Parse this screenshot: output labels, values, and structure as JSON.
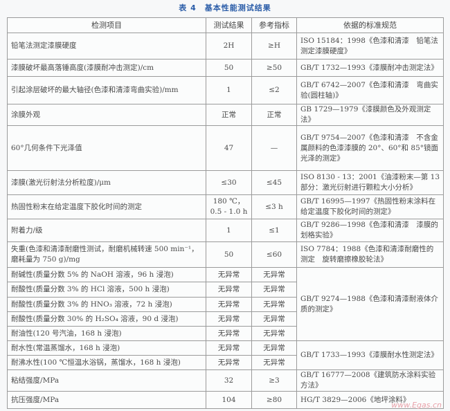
{
  "title": "表 4　基本性能测试结果",
  "headers": [
    "检测项目",
    "测试结果",
    "参考指标",
    "依据的标准规范"
  ],
  "rows": [
    {
      "item": "铅笔法测定漆膜硬度",
      "result": "2H",
      "ref": "≥H",
      "std": "ISO 15184：1998《色漆和清漆　铅笔法测定漆膜硬度》"
    },
    {
      "item": "漆膜破坏最高落锤高度(漆膜耐冲击测定)/cm",
      "result": "50",
      "ref": "≥50",
      "std": "GB/T 1732—1993《漆膜耐冲击测定法》"
    },
    {
      "item": "引起涂层破坏的最大轴径(色漆和清漆弯曲实验)/mm",
      "result": "1",
      "ref": "≤2",
      "std": "GB/T 6742—2007《色漆和清漆　弯曲实验(圆柱轴)》"
    },
    {
      "item": "涂膜外观",
      "result": "正常",
      "ref": "正常",
      "std": "GB 1729—1979《漆膜颜色及外观测定法》"
    },
    {
      "item": "60°几何条件下光泽值",
      "result": "47",
      "ref": "—",
      "std": "GB/T 9754—2007《色漆和清漆　不含金属颜料的色漆漆膜的 20°、60°和 85°镜面光泽的测定》"
    },
    {
      "item": "漆膜(激光衍射法分析粒度)/μm",
      "result": "≤30",
      "ref": "≤45",
      "std": "ISO 8130 - 13：2001《油漆粉末—第 13 部分：激光衍射进行颗粒大小分析》"
    },
    {
      "item": "热固性粉末在给定温度下胶化时间的测定",
      "result": "180 ℃，0.5 - 1.0 h",
      "ref": "≤3 h",
      "std": "GB/T 16995—1997《热固性粉末涂料在给定温度下胶化时间的测定》"
    },
    {
      "item": "附着力/级",
      "result": "1",
      "ref": "≤1",
      "std": "GB/T 9286—1998《色漆和清漆　漆膜的划格实验》"
    },
    {
      "item": "失重(色漆和清漆耐磨性测试，耐磨机械转速 500 min⁻¹，磨耗量为 750 g)/mg",
      "result": "50",
      "ref": "≤60",
      "std": "ISO 7784：1988《色漆和清漆耐磨性的测定　旋转磨擦橡胶轮法》"
    },
    {
      "item": "耐碱性(质量分数 5% 的 NaOH 溶液，96 h 浸泡)",
      "result": "无异常",
      "ref": "无异常",
      "std": "GB/T 9274—1988《色漆和清漆耐液体介质的测定》"
    },
    {
      "item": "耐酸性(质量分数 3% 的 HCl 溶液，500 h 浸泡)",
      "result": "无异常",
      "ref": "无异常"
    },
    {
      "item": "耐酸性(质量分数 3% 的 HNO₃ 溶液，72 h 浸泡)",
      "result": "无异常",
      "ref": "无异常"
    },
    {
      "item": "耐酸性(质量分数 30% 的 H₂SO₄ 溶液，90 d 浸泡)",
      "result": "无异常",
      "ref": "无异常"
    },
    {
      "item": "耐油性(120 号汽油，168 h 浸泡)",
      "result": "无异常",
      "ref": "无异常"
    },
    {
      "item": "耐水性(常温蒸馏水，168 h 浸泡)",
      "result": "无异常",
      "ref": "无异常",
      "std": "GB/T 1733—1993《漆膜耐水性测定法》"
    },
    {
      "item": "耐沸水性(100 ℃恒温水浴锅，蒸馏水，168 h 浸泡)",
      "result": "无异常",
      "ref": "无异常"
    },
    {
      "item": "粘结强度/MPa",
      "result": "32",
      "ref": "≥3",
      "std": "GB/T 16777—2008《建筑防水涂料实验方法》"
    },
    {
      "item": "抗压强度/MPa",
      "result": "104",
      "ref": "≥80",
      "std": "HG/T 3829—2006《地坪涂料》"
    }
  ],
  "watermark": "www.Egas.cn",
  "colors": {
    "title": "#2a5ca8",
    "border": "#9a9a9a",
    "text": "#4a4a4a"
  }
}
